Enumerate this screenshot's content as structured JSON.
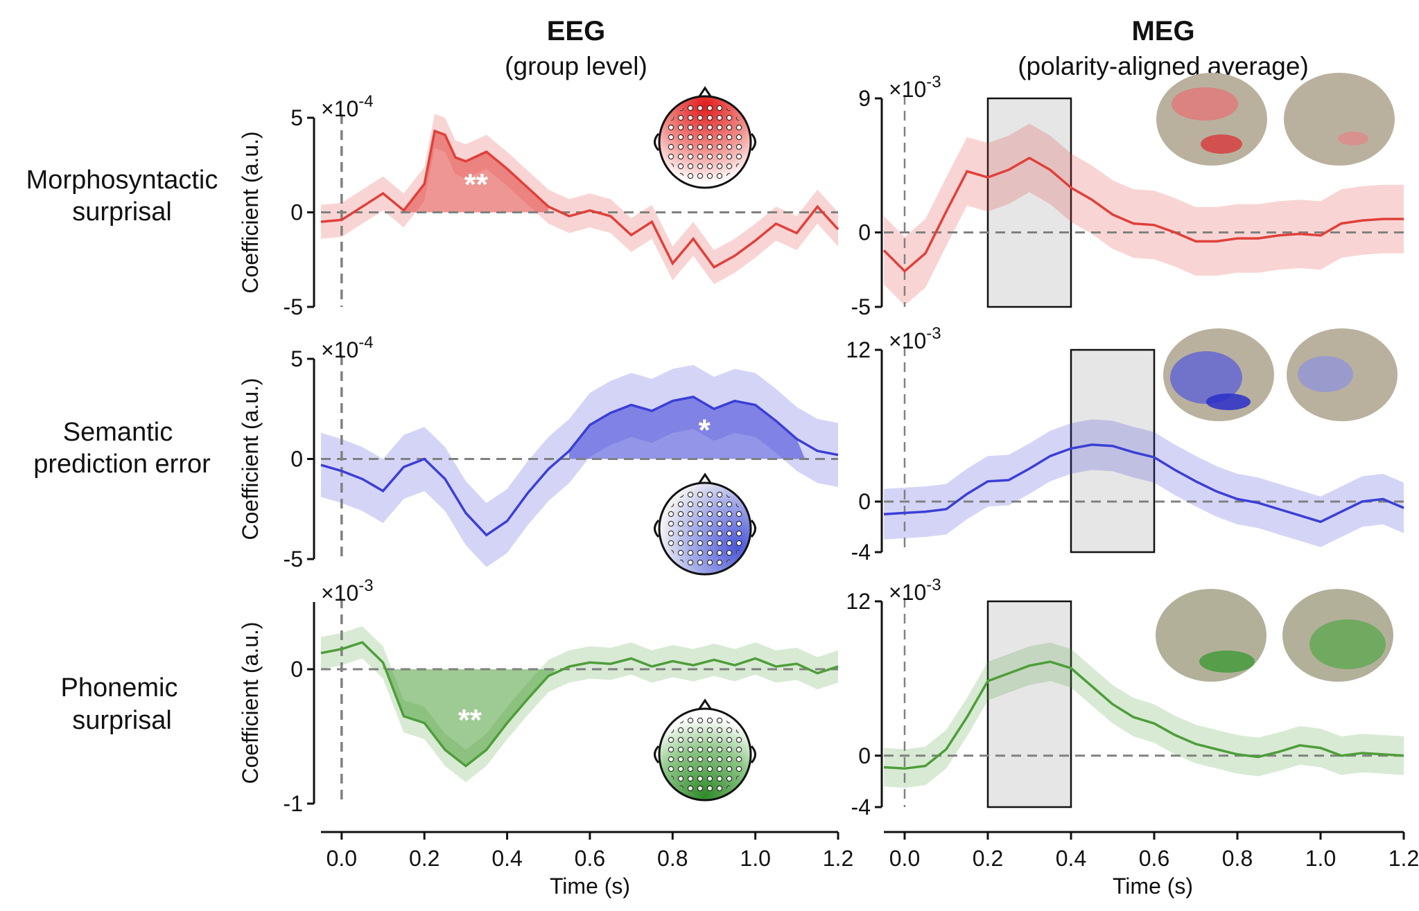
{
  "headers": {
    "eeg_title": "EEG",
    "eeg_subtitle": "(group level)",
    "meg_title": "MEG",
    "meg_subtitle": "(polarity-aligned average)"
  },
  "rows": [
    {
      "label_line1": "Morphosyntactic",
      "label_line2": "surprisal"
    },
    {
      "label_line1": "Semantic",
      "label_line2": "prediction error"
    },
    {
      "label_line1": "Phonemic",
      "label_line2": "surprisal"
    }
  ],
  "colors": {
    "red": "#e0403a",
    "blue": "#3b3fd6",
    "green": "#4e9e3a",
    "zero_line": "#808080",
    "window_fill": "#e6e6e6"
  },
  "x_axis": {
    "label": "Time (s)",
    "ticks": [
      "0.0",
      "0.2",
      "0.4",
      "0.6",
      "0.8",
      "1.0",
      "1.2"
    ]
  },
  "chart_data": [
    {
      "type": "line",
      "panel": "eeg-morphosyntactic",
      "color": "red",
      "ylabel": "Coefficient (a.u.)",
      "multiplier": "×10-4",
      "xlim": [
        -0.05,
        1.2
      ],
      "ylim": [
        -5,
        5
      ],
      "yticks": [
        "5",
        "0",
        "-5"
      ],
      "significance": "**",
      "x": [
        -0.05,
        0.0,
        0.05,
        0.1,
        0.15,
        0.2,
        0.225,
        0.25,
        0.275,
        0.3,
        0.35,
        0.4,
        0.45,
        0.5,
        0.55,
        0.6,
        0.65,
        0.7,
        0.75,
        0.8,
        0.85,
        0.9,
        0.95,
        1.0,
        1.05,
        1.1,
        1.15,
        1.2
      ],
      "y": [
        -0.5,
        -0.4,
        0.3,
        1.0,
        0.1,
        1.5,
        4.3,
        4.1,
        2.9,
        2.7,
        3.2,
        2.3,
        1.3,
        0.3,
        -0.2,
        0.1,
        -0.2,
        -1.2,
        -0.5,
        -2.7,
        -1.4,
        -2.9,
        -2.3,
        -1.5,
        -0.6,
        -1.1,
        0.3,
        -0.9
      ],
      "ci": 0.9,
      "significant_window": [
        0.15,
        0.5
      ]
    },
    {
      "type": "line",
      "panel": "eeg-semantic",
      "color": "blue",
      "ylabel": "Coefficient (a.u.)",
      "multiplier": "×10-4",
      "xlim": [
        -0.05,
        1.2
      ],
      "ylim": [
        -5,
        5
      ],
      "yticks": [
        "5",
        "0",
        "-5"
      ],
      "significance": "*",
      "x": [
        -0.05,
        0.0,
        0.05,
        0.1,
        0.15,
        0.2,
        0.25,
        0.3,
        0.35,
        0.4,
        0.45,
        0.5,
        0.55,
        0.6,
        0.65,
        0.7,
        0.75,
        0.8,
        0.85,
        0.9,
        0.95,
        1.0,
        1.05,
        1.1,
        1.15,
        1.2
      ],
      "y": [
        -0.3,
        -0.6,
        -1.0,
        -1.6,
        -0.4,
        0.0,
        -1.0,
        -2.7,
        -3.8,
        -3.1,
        -1.7,
        -0.5,
        0.4,
        1.7,
        2.3,
        2.7,
        2.4,
        2.9,
        3.1,
        2.5,
        2.9,
        2.7,
        1.9,
        1.0,
        0.4,
        0.2
      ],
      "ci": 1.6,
      "significant_window": [
        0.55,
        1.12
      ]
    },
    {
      "type": "line",
      "panel": "eeg-phonemic",
      "color": "green",
      "ylabel": "Coefficient (a.u.)",
      "multiplier": "×10-3",
      "xlim": [
        -0.05,
        1.2
      ],
      "ylim": [
        -1,
        0.5
      ],
      "yticks": [
        "0",
        "-1"
      ],
      "significance": "**",
      "x": [
        -0.05,
        0.0,
        0.05,
        0.1,
        0.15,
        0.2,
        0.25,
        0.3,
        0.35,
        0.4,
        0.45,
        0.5,
        0.55,
        0.6,
        0.65,
        0.7,
        0.75,
        0.8,
        0.85,
        0.9,
        0.95,
        1.0,
        1.05,
        1.1,
        1.15,
        1.2
      ],
      "y": [
        0.12,
        0.15,
        0.2,
        0.05,
        -0.35,
        -0.4,
        -0.6,
        -0.72,
        -0.6,
        -0.4,
        -0.22,
        -0.05,
        0.02,
        0.05,
        0.04,
        0.08,
        0.02,
        0.06,
        0.03,
        0.07,
        0.03,
        0.08,
        0.02,
        0.04,
        -0.03,
        0.02
      ],
      "ci": 0.12,
      "significant_window": [
        0.1,
        0.52
      ]
    },
    {
      "type": "line",
      "panel": "meg-morphosyntactic",
      "color": "red",
      "multiplier": "×10-3",
      "xlim": [
        -0.05,
        1.2
      ],
      "ylim": [
        -5,
        9
      ],
      "yticks": [
        "9",
        "0",
        "-5"
      ],
      "time_window": [
        0.2,
        0.4
      ],
      "x": [
        -0.05,
        0.0,
        0.05,
        0.1,
        0.15,
        0.2,
        0.25,
        0.3,
        0.35,
        0.4,
        0.45,
        0.5,
        0.55,
        0.6,
        0.65,
        0.7,
        0.75,
        0.8,
        0.85,
        0.9,
        0.95,
        1.0,
        1.05,
        1.1,
        1.15,
        1.2
      ],
      "y": [
        -1.2,
        -2.6,
        -1.4,
        1.4,
        4.1,
        3.7,
        4.2,
        5.0,
        4.2,
        3.0,
        2.2,
        1.2,
        0.6,
        0.5,
        0.0,
        -0.6,
        -0.6,
        -0.4,
        -0.4,
        -0.2,
        -0.1,
        -0.2,
        0.6,
        0.8,
        0.9,
        0.9
      ],
      "ci": 2.3
    },
    {
      "type": "line",
      "panel": "meg-semantic",
      "color": "blue",
      "multiplier": "×10-3",
      "xlim": [
        -0.05,
        1.2
      ],
      "ylim": [
        -4,
        12
      ],
      "yticks": [
        "12",
        "0",
        "-4"
      ],
      "time_window": [
        0.4,
        0.6
      ],
      "x": [
        -0.05,
        0.0,
        0.05,
        0.1,
        0.15,
        0.2,
        0.25,
        0.3,
        0.35,
        0.4,
        0.45,
        0.5,
        0.55,
        0.6,
        0.65,
        0.7,
        0.75,
        0.8,
        0.85,
        0.9,
        0.95,
        1.0,
        1.05,
        1.1,
        1.15,
        1.2
      ],
      "y": [
        -1.0,
        -0.9,
        -0.8,
        -0.6,
        0.6,
        1.6,
        1.7,
        2.6,
        3.6,
        4.2,
        4.5,
        4.4,
        3.9,
        3.5,
        2.5,
        1.6,
        0.8,
        0.2,
        -0.1,
        -0.6,
        -1.1,
        -1.6,
        -0.8,
        0.0,
        0.2,
        -0.5
      ],
      "ci": 2.0
    },
    {
      "type": "line",
      "panel": "meg-phonemic",
      "color": "green",
      "multiplier": "×10-3",
      "xlim": [
        -0.05,
        1.2
      ],
      "ylim": [
        -4,
        12
      ],
      "yticks": [
        "12",
        "0",
        "-4"
      ],
      "time_window": [
        0.2,
        0.4
      ],
      "x": [
        -0.05,
        0.0,
        0.05,
        0.1,
        0.15,
        0.2,
        0.25,
        0.3,
        0.35,
        0.4,
        0.45,
        0.5,
        0.55,
        0.6,
        0.65,
        0.7,
        0.75,
        0.8,
        0.85,
        0.9,
        0.95,
        1.0,
        1.05,
        1.1,
        1.15,
        1.2
      ],
      "y": [
        -0.9,
        -1.0,
        -0.8,
        0.5,
        3.0,
        5.8,
        6.4,
        7.0,
        7.3,
        6.8,
        5.4,
        4.0,
        3.0,
        2.5,
        1.6,
        0.9,
        0.5,
        0.1,
        -0.1,
        0.3,
        0.8,
        0.6,
        0.0,
        0.2,
        0.1,
        0.0
      ],
      "ci": 1.5
    }
  ]
}
